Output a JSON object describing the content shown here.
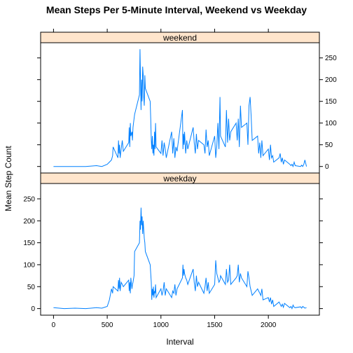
{
  "chart_data": {
    "type": "line",
    "title": "Mean Steps Per 5-Minute Interval, Weekend vs Weekday",
    "xlabel": "Interval",
    "ylabel": "Mean Step Count",
    "xlim": [
      -120,
      2475
    ],
    "ylim": [
      -15,
      285
    ],
    "x_ticks": [
      0,
      500,
      1000,
      1500,
      2000
    ],
    "y_ticks": [
      0,
      50,
      100,
      150,
      200,
      250
    ],
    "x_tick_labels": [
      "0",
      "500",
      "1000",
      "1500",
      "2000"
    ],
    "y_tick_labels": [
      "0",
      "50",
      "100",
      "150",
      "200",
      "250"
    ],
    "line_color": "#0080ff",
    "strip_color": "#ffe5cc",
    "grid": false,
    "legend": "none",
    "panels": [
      {
        "name": "weekend",
        "x": [
          0,
          100,
          200,
          300,
          400,
          450,
          500,
          520,
          540,
          550,
          555,
          600,
          605,
          610,
          615,
          620,
          630,
          640,
          650,
          700,
          705,
          710,
          715,
          720,
          730,
          735,
          740,
          750,
          755,
          800,
          805,
          810,
          815,
          820,
          825,
          830,
          835,
          840,
          845,
          850,
          855,
          900,
          905,
          910,
          915,
          920,
          925,
          930,
          935,
          940,
          945,
          950,
          955,
          1000,
          1010,
          1020,
          1030,
          1040,
          1050,
          1100,
          1110,
          1120,
          1130,
          1140,
          1150,
          1200,
          1205,
          1210,
          1215,
          1220,
          1230,
          1240,
          1250,
          1300,
          1310,
          1320,
          1330,
          1340,
          1350,
          1400,
          1410,
          1420,
          1430,
          1440,
          1450,
          1500,
          1510,
          1520,
          1530,
          1540,
          1550,
          1555,
          1600,
          1610,
          1620,
          1630,
          1640,
          1650,
          1700,
          1710,
          1720,
          1730,
          1740,
          1750,
          1800,
          1810,
          1820,
          1830,
          1840,
          1850,
          1900,
          1910,
          1920,
          1930,
          1940,
          1950,
          2000,
          2010,
          2020,
          2030,
          2040,
          2050,
          2100,
          2110,
          2120,
          2130,
          2140,
          2150,
          2200,
          2210,
          2220,
          2230,
          2240,
          2250,
          2300,
          2310,
          2320,
          2330,
          2340,
          2355
        ],
        "y": [
          0,
          0,
          0,
          0,
          2,
          0,
          5,
          10,
          15,
          25,
          45,
          20,
          60,
          30,
          50,
          20,
          40,
          60,
          35,
          55,
          90,
          45,
          100,
          70,
          80,
          60,
          90,
          110,
          120,
          165,
          270,
          200,
          130,
          200,
          150,
          230,
          210,
          160,
          140,
          210,
          180,
          150,
          110,
          60,
          40,
          70,
          30,
          50,
          25,
          80,
          40,
          100,
          45,
          30,
          60,
          25,
          55,
          40,
          20,
          80,
          30,
          65,
          20,
          45,
          35,
          130,
          40,
          75,
          50,
          80,
          30,
          60,
          40,
          90,
          55,
          30,
          75,
          40,
          60,
          50,
          30,
          85,
          45,
          60,
          25,
          70,
          20,
          45,
          100,
          40,
          160,
          70,
          45,
          130,
          55,
          110,
          60,
          80,
          100,
          60,
          110,
          45,
          140,
          90,
          100,
          50,
          140,
          160,
          115,
          60,
          70,
          30,
          55,
          20,
          60,
          25,
          40,
          15,
          50,
          20,
          25,
          10,
          20,
          30,
          10,
          20,
          5,
          15,
          5,
          2,
          5,
          0,
          10,
          2,
          0,
          3,
          0,
          5,
          15,
          0
        ]
      },
      {
        "name": "weekday",
        "x": [
          0,
          100,
          200,
          300,
          400,
          450,
          500,
          520,
          540,
          550,
          555,
          600,
          605,
          610,
          615,
          620,
          630,
          640,
          650,
          700,
          705,
          710,
          715,
          720,
          730,
          735,
          740,
          750,
          755,
          800,
          805,
          810,
          815,
          820,
          825,
          830,
          835,
          840,
          845,
          850,
          855,
          900,
          905,
          910,
          915,
          920,
          925,
          930,
          935,
          940,
          945,
          950,
          955,
          1000,
          1010,
          1020,
          1030,
          1040,
          1050,
          1100,
          1110,
          1120,
          1130,
          1140,
          1150,
          1200,
          1205,
          1210,
          1215,
          1220,
          1230,
          1240,
          1250,
          1300,
          1310,
          1320,
          1330,
          1340,
          1350,
          1400,
          1410,
          1420,
          1430,
          1440,
          1450,
          1500,
          1510,
          1520,
          1530,
          1540,
          1550,
          1555,
          1600,
          1610,
          1620,
          1630,
          1640,
          1650,
          1700,
          1710,
          1720,
          1730,
          1740,
          1750,
          1800,
          1810,
          1820,
          1830,
          1840,
          1850,
          1900,
          1910,
          1920,
          1930,
          1940,
          1950,
          2000,
          2010,
          2020,
          2030,
          2040,
          2050,
          2100,
          2110,
          2120,
          2130,
          2140,
          2150,
          2200,
          2210,
          2220,
          2230,
          2240,
          2250,
          2300,
          2310,
          2320,
          2330,
          2340,
          2355
        ],
        "y": [
          2,
          0,
          1,
          0,
          2,
          1,
          5,
          20,
          45,
          35,
          50,
          40,
          65,
          45,
          70,
          40,
          60,
          55,
          50,
          65,
          40,
          60,
          35,
          70,
          45,
          55,
          60,
          75,
          130,
          150,
          200,
          180,
          230,
          190,
          210,
          170,
          200,
          180,
          160,
          150,
          130,
          100,
          80,
          60,
          20,
          45,
          30,
          50,
          25,
          40,
          35,
          55,
          25,
          45,
          30,
          40,
          60,
          30,
          45,
          25,
          40,
          35,
          55,
          30,
          45,
          70,
          100,
          75,
          90,
          80,
          70,
          65,
          55,
          90,
          60,
          40,
          75,
          50,
          60,
          35,
          50,
          70,
          40,
          60,
          35,
          55,
          110,
          80,
          70,
          60,
          65,
          75,
          55,
          90,
          60,
          65,
          100,
          55,
          70,
          75,
          100,
          60,
          80,
          70,
          50,
          85,
          70,
          50,
          40,
          30,
          45,
          40,
          35,
          30,
          45,
          20,
          25,
          15,
          25,
          10,
          20,
          5,
          15,
          10,
          5,
          10,
          3,
          12,
          2,
          5,
          0,
          8,
          3,
          2,
          4,
          1,
          5,
          3,
          1,
          2
        ]
      }
    ]
  }
}
